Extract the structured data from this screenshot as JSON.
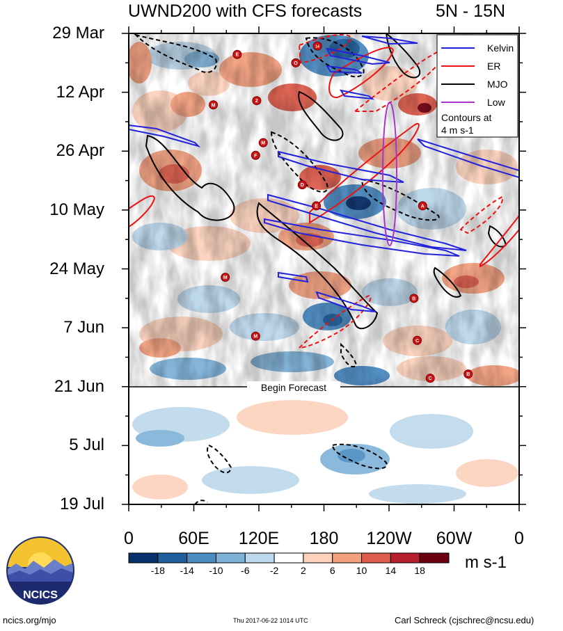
{
  "header": {
    "title": "UWND200 with CFS forecasts",
    "region": "5N - 15N"
  },
  "chart_data": {
    "type": "heatmap",
    "title": "UWND200 with CFS forecasts",
    "subtitle": "5N - 15N",
    "x_ticks": [
      "0",
      "60E",
      "120E",
      "180",
      "120W",
      "60W",
      "0"
    ],
    "x_values": [
      0,
      60,
      120,
      180,
      240,
      300,
      360
    ],
    "y_ticks": [
      "29 Mar",
      "12 Apr",
      "26 Apr",
      "10 May",
      "24 May",
      "7 Jun",
      "21 Jun",
      "5 Jul",
      "19 Jul"
    ],
    "y_values": [
      "2017-03-29",
      "2017-04-12",
      "2017-04-26",
      "2017-05-10",
      "2017-05-24",
      "2017-06-07",
      "2017-06-21",
      "2017-07-05",
      "2017-07-19"
    ],
    "forecast_label": "Begin Forecast",
    "forecast_start": "2017-06-21",
    "colorbar": {
      "units": "m s-1",
      "labels": [
        "-18",
        "-14",
        "-10",
        "-6",
        "-2",
        "2",
        "6",
        "10",
        "14",
        "18"
      ],
      "colors": [
        "#08306b",
        "#1f5f9e",
        "#4a8bc2",
        "#7fb2d8",
        "#bcd8ec",
        "#ffffff",
        "#fcd2bd",
        "#f3a07f",
        "#de5d4c",
        "#b51f2e",
        "#6a0010"
      ]
    },
    "legend": {
      "position": "top-right",
      "entries": [
        {
          "name": "Kelvin",
          "color": "#2222dd"
        },
        {
          "name": "ER",
          "color": "#ee1111"
        },
        {
          "name": "MJO",
          "color": "#000000"
        },
        {
          "name": "Low",
          "color": "#aa33cc"
        }
      ],
      "note_line1": "Contours at",
      "note_line2": "4 m s-1"
    },
    "storms": [
      {
        "letter": "E",
        "lon": 100,
        "date": "2017-04-03"
      },
      {
        "letter": "O",
        "lon": 154,
        "date": "2017-04-05"
      },
      {
        "letter": "14",
        "lon": 174,
        "date": "2017-04-01"
      },
      {
        "letter": "M",
        "lon": 78,
        "date": "2017-04-15"
      },
      {
        "letter": "2",
        "lon": 118,
        "date": "2017-04-14"
      },
      {
        "letter": "M",
        "lon": 124,
        "date": "2017-04-24"
      },
      {
        "letter": "F",
        "lon": 117,
        "date": "2017-04-27"
      },
      {
        "letter": "D",
        "lon": 160,
        "date": "2017-05-04"
      },
      {
        "letter": "E",
        "lon": 173,
        "date": "2017-05-09"
      },
      {
        "letter": "A",
        "lon": 271,
        "date": "2017-05-09"
      },
      {
        "letter": "M",
        "lon": 89,
        "date": "2017-05-26"
      },
      {
        "letter": "B",
        "lon": 263,
        "date": "2017-05-31"
      },
      {
        "letter": "M",
        "lon": 117,
        "date": "2017-06-09"
      },
      {
        "letter": "C",
        "lon": 266,
        "date": "2017-06-10"
      },
      {
        "letter": "C",
        "lon": 278,
        "date": "2017-06-19"
      },
      {
        "letter": "B",
        "lon": 313,
        "date": "2017-06-18"
      }
    ]
  },
  "footer": {
    "left": "ncics.org/mjo",
    "center": "Thu 2017-06-22 1014 UTC",
    "right": "Carl Schreck (cjschrec@ncsu.edu)"
  },
  "logo": {
    "text": "NCICS"
  }
}
